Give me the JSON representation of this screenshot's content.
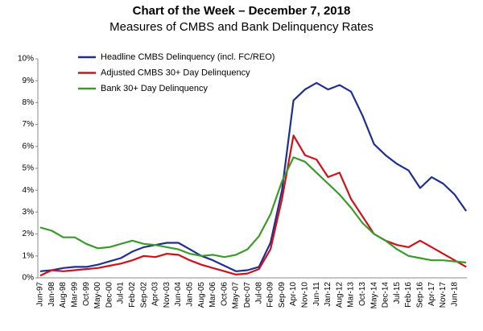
{
  "chart_data": {
    "type": "line",
    "title": "Chart of the Week – December 7, 2018",
    "subtitle": "Measures of CMBS and Bank Delinquency Rates",
    "categories": [
      "Jun-97",
      "Jan-98",
      "Aug-98",
      "Mar-99",
      "Oct-99",
      "May-00",
      "Dec-00",
      "Jul-01",
      "Feb-02",
      "Sep-02",
      "Apr-03",
      "Nov-03",
      "Jun-04",
      "Jan-05",
      "Aug-05",
      "Mar-06",
      "Oct-06",
      "May-07",
      "Dec-07",
      "Jul-08",
      "Feb-09",
      "Sep-09",
      "Apr-10",
      "Nov-10",
      "Jun-11",
      "Jan-12",
      "Aug-12",
      "Mar-13",
      "Oct-13",
      "May-14",
      "Dec-14",
      "Jul-15",
      "Feb-16",
      "Sep-16",
      "Apr-17",
      "Nov-17",
      "Jun-18",
      null
    ],
    "series": [
      {
        "name": "Headline CMBS Delinquency (incl. FC/REO)",
        "color": "#1f2f8f",
        "values": [
          0.3,
          0.35,
          0.45,
          0.5,
          0.5,
          0.6,
          0.75,
          0.9,
          1.2,
          1.4,
          1.5,
          1.6,
          1.6,
          1.3,
          1.0,
          0.8,
          0.55,
          0.3,
          0.35,
          0.5,
          1.6,
          4.0,
          8.1,
          8.6,
          8.9,
          8.6,
          8.8,
          8.5,
          7.4,
          6.1,
          5.6,
          5.2,
          4.9,
          4.1,
          4.6,
          4.3,
          3.8,
          3.05
        ]
      },
      {
        "name": "Adjusted CMBS 30+ Day Delinquency",
        "color": "#d0101a",
        "values": [
          0.1,
          0.35,
          0.3,
          0.35,
          0.4,
          0.45,
          0.55,
          0.65,
          0.8,
          1.0,
          0.95,
          1.1,
          1.05,
          0.8,
          0.6,
          0.45,
          0.3,
          0.15,
          0.2,
          0.4,
          1.3,
          3.6,
          6.5,
          5.6,
          5.4,
          4.6,
          4.8,
          3.6,
          2.8,
          2.0,
          1.7,
          1.5,
          1.4,
          1.7,
          1.4,
          1.1,
          0.8,
          0.5
        ]
      },
      {
        "name": "Bank 30+ Day Delinquency",
        "color": "#3a9a2a",
        "values": [
          2.3,
          2.15,
          1.85,
          1.85,
          1.55,
          1.35,
          1.4,
          1.55,
          1.7,
          1.55,
          1.5,
          1.4,
          1.3,
          1.1,
          1.0,
          1.05,
          0.95,
          1.05,
          1.3,
          1.9,
          2.9,
          4.4,
          5.5,
          5.3,
          4.8,
          4.3,
          3.8,
          3.2,
          2.5,
          2.0,
          1.7,
          1.3,
          1.0,
          0.9,
          0.8,
          0.8,
          0.75,
          0.7
        ]
      }
    ],
    "ylim": [
      0,
      10
    ],
    "yticks": [
      {
        "value": 0,
        "label": "0%"
      },
      {
        "value": 1,
        "label": "1%"
      },
      {
        "value": 2,
        "label": "2%"
      },
      {
        "value": 3,
        "label": "3%"
      },
      {
        "value": 4,
        "label": "4%"
      },
      {
        "value": 5,
        "label": "5%"
      },
      {
        "value": 6,
        "label": "6%"
      },
      {
        "value": 7,
        "label": "7%"
      },
      {
        "value": 8,
        "label": "8%"
      },
      {
        "value": 9,
        "label": "9%"
      },
      {
        "value": 10,
        "label": "10%"
      }
    ],
    "grid": false
  }
}
